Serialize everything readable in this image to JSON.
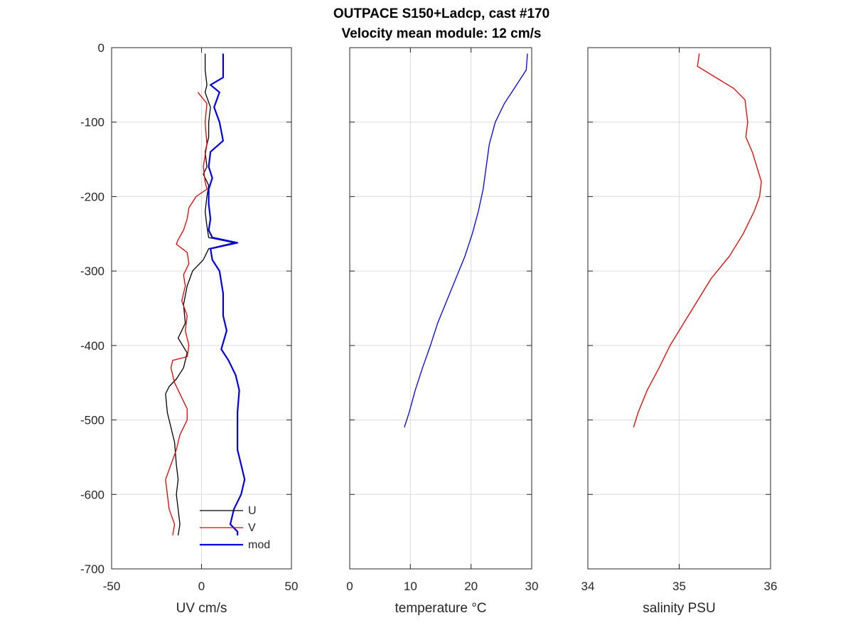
{
  "figure": {
    "title_line1": "OUTPACE S150+Ladcp, cast #170",
    "title_line2": "Velocity mean module:  12 cm/s"
  },
  "chart_data": [
    {
      "type": "line",
      "xlabel": "UV cm/s",
      "ylabel": "",
      "xlim": [
        -50,
        50
      ],
      "ylim": [
        -700,
        0
      ],
      "xticks": [
        -50,
        0,
        50
      ],
      "yticks": [
        0,
        -100,
        -200,
        -300,
        -400,
        -500,
        -600,
        -700
      ],
      "grid": true,
      "legend": {
        "placement": "bottom-right"
      },
      "series": [
        {
          "name": "U",
          "color": "#000000",
          "points": [
            [
              2,
              -8
            ],
            [
              2,
              -30
            ],
            [
              3,
              -50
            ],
            [
              2,
              -60
            ],
            [
              5,
              -80
            ],
            [
              4,
              -100
            ],
            [
              4,
              -120
            ],
            [
              2,
              -140
            ],
            [
              3,
              -160
            ],
            [
              1,
              -170
            ],
            [
              4,
              -185
            ],
            [
              3,
              -200
            ],
            [
              2,
              -220
            ],
            [
              3,
              -240
            ],
            [
              4,
              -255
            ],
            [
              18,
              -262
            ],
            [
              4,
              -270
            ],
            [
              1,
              -285
            ],
            [
              -5,
              -300
            ],
            [
              -8,
              -320
            ],
            [
              -10,
              -345
            ],
            [
              -9,
              -370
            ],
            [
              -13,
              -390
            ],
            [
              -8,
              -410
            ],
            [
              -10,
              -430
            ],
            [
              -14,
              -445
            ],
            [
              -18,
              -455
            ],
            [
              -20,
              -465
            ],
            [
              -19,
              -490
            ],
            [
              -17,
              -510
            ],
            [
              -15,
              -530
            ],
            [
              -14,
              -560
            ],
            [
              -13,
              -580
            ],
            [
              -14,
              -600
            ],
            [
              -13,
              -620
            ],
            [
              -12,
              -640
            ],
            [
              -13,
              -655
            ]
          ]
        },
        {
          "name": "V",
          "color": "#e00000",
          "points": [
            [
              -2,
              -60
            ],
            [
              3,
              -75
            ],
            [
              2,
              -100
            ],
            [
              3,
              -130
            ],
            [
              1,
              -160
            ],
            [
              2,
              -180
            ],
            [
              3,
              -190
            ],
            [
              -3,
              -200
            ],
            [
              -7,
              -215
            ],
            [
              -8,
              -230
            ],
            [
              -10,
              -245
            ],
            [
              -13,
              -258
            ],
            [
              -14,
              -264
            ],
            [
              -8,
              -275
            ],
            [
              -7,
              -290
            ],
            [
              -10,
              -305
            ],
            [
              -9,
              -320
            ],
            [
              -11,
              -340
            ],
            [
              -8,
              -360
            ],
            [
              -9,
              -380
            ],
            [
              -7,
              -400
            ],
            [
              -8,
              -415
            ],
            [
              -16,
              -420
            ],
            [
              -17,
              -430
            ],
            [
              -15,
              -450
            ],
            [
              -11,
              -470
            ],
            [
              -8,
              -485
            ],
            [
              -8,
              -500
            ],
            [
              -12,
              -520
            ],
            [
              -14,
              -540
            ],
            [
              -17,
              -560
            ],
            [
              -20,
              -580
            ],
            [
              -19,
              -600
            ],
            [
              -18,
              -620
            ],
            [
              -15,
              -640
            ],
            [
              -16,
              -655
            ]
          ]
        },
        {
          "name": "mod",
          "color": "#0000e6",
          "points": [
            [
              12,
              -8
            ],
            [
              12,
              -40
            ],
            [
              5,
              -50
            ],
            [
              10,
              -60
            ],
            [
              7,
              -80
            ],
            [
              10,
              -100
            ],
            [
              12,
              -125
            ],
            [
              5,
              -140
            ],
            [
              4,
              -160
            ],
            [
              6,
              -175
            ],
            [
              4,
              -190
            ],
            [
              4,
              -210
            ],
            [
              5,
              -230
            ],
            [
              4,
              -245
            ],
            [
              6,
              -255
            ],
            [
              20,
              -262
            ],
            [
              5,
              -270
            ],
            [
              6,
              -285
            ],
            [
              10,
              -300
            ],
            [
              12,
              -330
            ],
            [
              12,
              -360
            ],
            [
              14,
              -380
            ],
            [
              11,
              -405
            ],
            [
              15,
              -420
            ],
            [
              19,
              -440
            ],
            [
              21,
              -460
            ],
            [
              20,
              -490
            ],
            [
              20,
              -520
            ],
            [
              20,
              -540
            ],
            [
              22,
              -560
            ],
            [
              24,
              -580
            ],
            [
              22,
              -600
            ],
            [
              18,
              -620
            ],
            [
              16,
              -640
            ],
            [
              20,
              -650
            ],
            [
              20,
              -655
            ]
          ]
        }
      ]
    },
    {
      "type": "line",
      "xlabel": "temperature °C",
      "ylabel": "",
      "xlim": [
        0,
        30
      ],
      "ylim": [
        -700,
        0
      ],
      "xticks": [
        0,
        10,
        20,
        30
      ],
      "grid": true,
      "series": [
        {
          "color": "#0000e6",
          "points": [
            [
              29.3,
              -8
            ],
            [
              29.1,
              -30
            ],
            [
              27.5,
              -50
            ],
            [
              25.5,
              -75
            ],
            [
              24,
              -100
            ],
            [
              23,
              -130
            ],
            [
              22.5,
              -160
            ],
            [
              22,
              -190
            ],
            [
              21.2,
              -220
            ],
            [
              20.2,
              -250
            ],
            [
              19,
              -280
            ],
            [
              17.5,
              -310
            ],
            [
              16,
              -340
            ],
            [
              14.5,
              -370
            ],
            [
              13.3,
              -400
            ],
            [
              12,
              -430
            ],
            [
              10.8,
              -460
            ],
            [
              9.8,
              -490
            ],
            [
              9,
              -510
            ]
          ]
        }
      ]
    },
    {
      "type": "line",
      "xlabel": "salinity PSU",
      "ylabel": "",
      "xlim": [
        34,
        36
      ],
      "ylim": [
        -700,
        0
      ],
      "xticks": [
        34,
        35,
        36
      ],
      "grid": true,
      "series": [
        {
          "color": "#e00000",
          "points": [
            [
              35.22,
              -8
            ],
            [
              35.2,
              -25
            ],
            [
              35.4,
              -40
            ],
            [
              35.6,
              -55
            ],
            [
              35.72,
              -70
            ],
            [
              35.75,
              -100
            ],
            [
              35.73,
              -120
            ],
            [
              35.8,
              -140
            ],
            [
              35.85,
              -160
            ],
            [
              35.9,
              -180
            ],
            [
              35.88,
              -200
            ],
            [
              35.82,
              -220
            ],
            [
              35.7,
              -250
            ],
            [
              35.55,
              -280
            ],
            [
              35.35,
              -310
            ],
            [
              35.2,
              -340
            ],
            [
              35.05,
              -370
            ],
            [
              34.9,
              -400
            ],
            [
              34.78,
              -430
            ],
            [
              34.65,
              -460
            ],
            [
              34.55,
              -490
            ],
            [
              34.5,
              -510
            ]
          ]
        }
      ]
    }
  ]
}
